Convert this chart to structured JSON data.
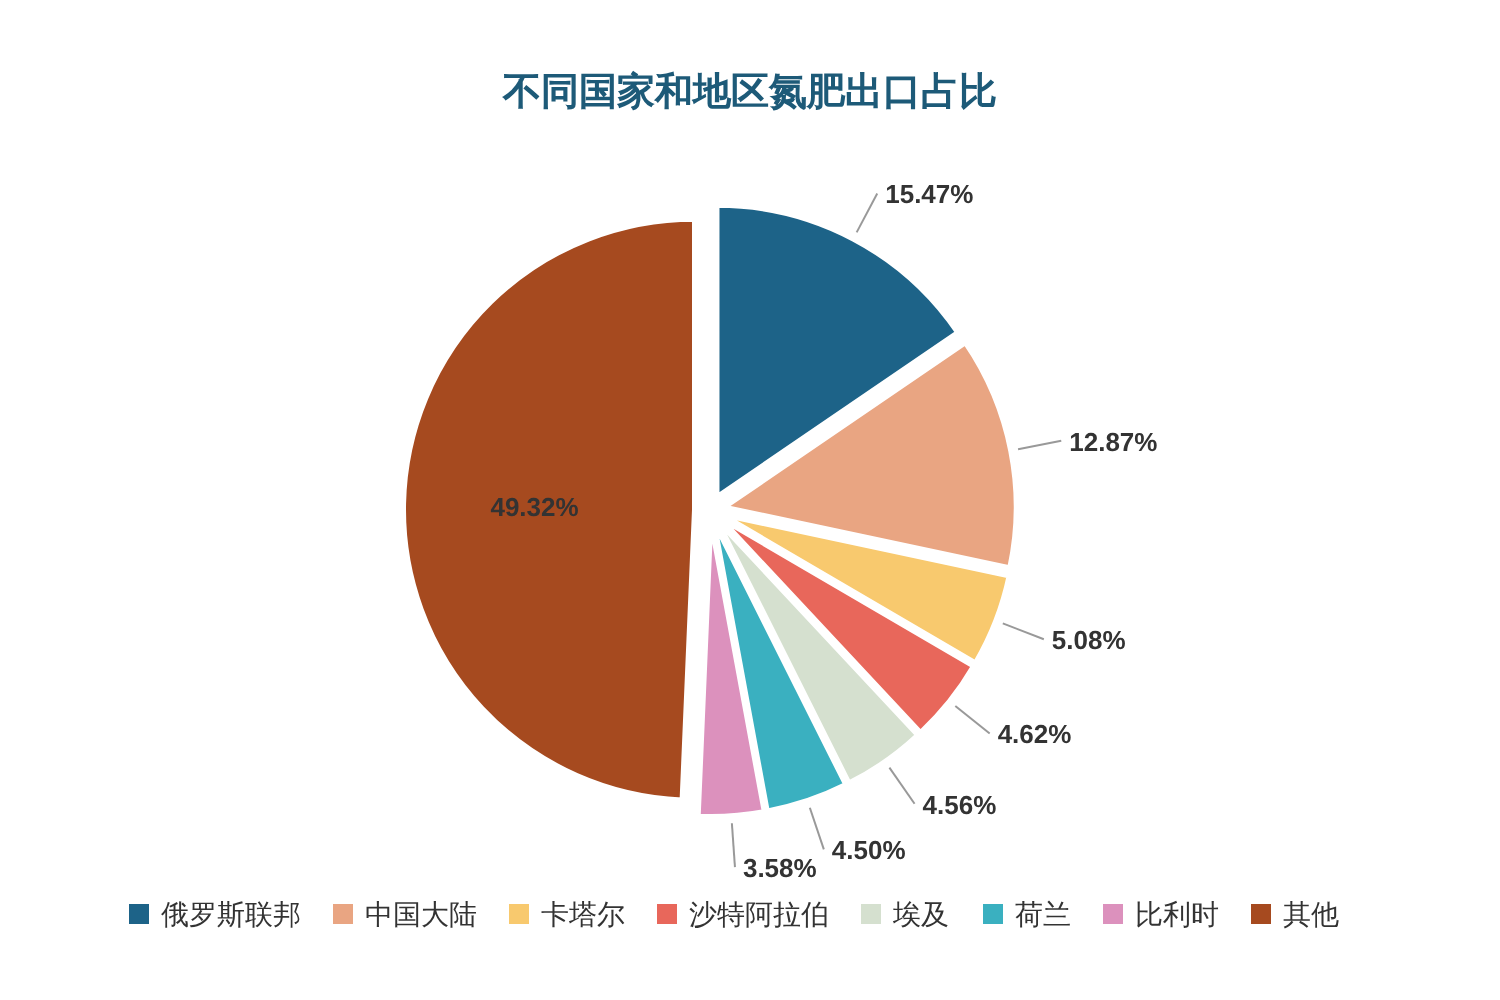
{
  "chart_data": {
    "type": "pie",
    "title": "不同国家和地区氮肥出口占比",
    "categories": [
      "俄罗斯联邦",
      "中国大陆",
      "卡塔尔",
      "沙特阿拉伯",
      "埃及",
      "荷兰",
      "比利时",
      "其他"
    ],
    "values": [
      15.47,
      12.87,
      5.08,
      4.62,
      4.56,
      4.5,
      3.58,
      49.32
    ],
    "colors": [
      "#1d6388",
      "#e9a582",
      "#f8c96e",
      "#e8675b",
      "#d5e0cf",
      "#3ab0c0",
      "#dc91bd",
      "#a64a1f"
    ],
    "value_labels": [
      "15.47%",
      "12.87%",
      "5.08%",
      "4.62%",
      "4.56%",
      "4.50%",
      "3.58%",
      "49.32%"
    ],
    "legend": "bottom"
  }
}
